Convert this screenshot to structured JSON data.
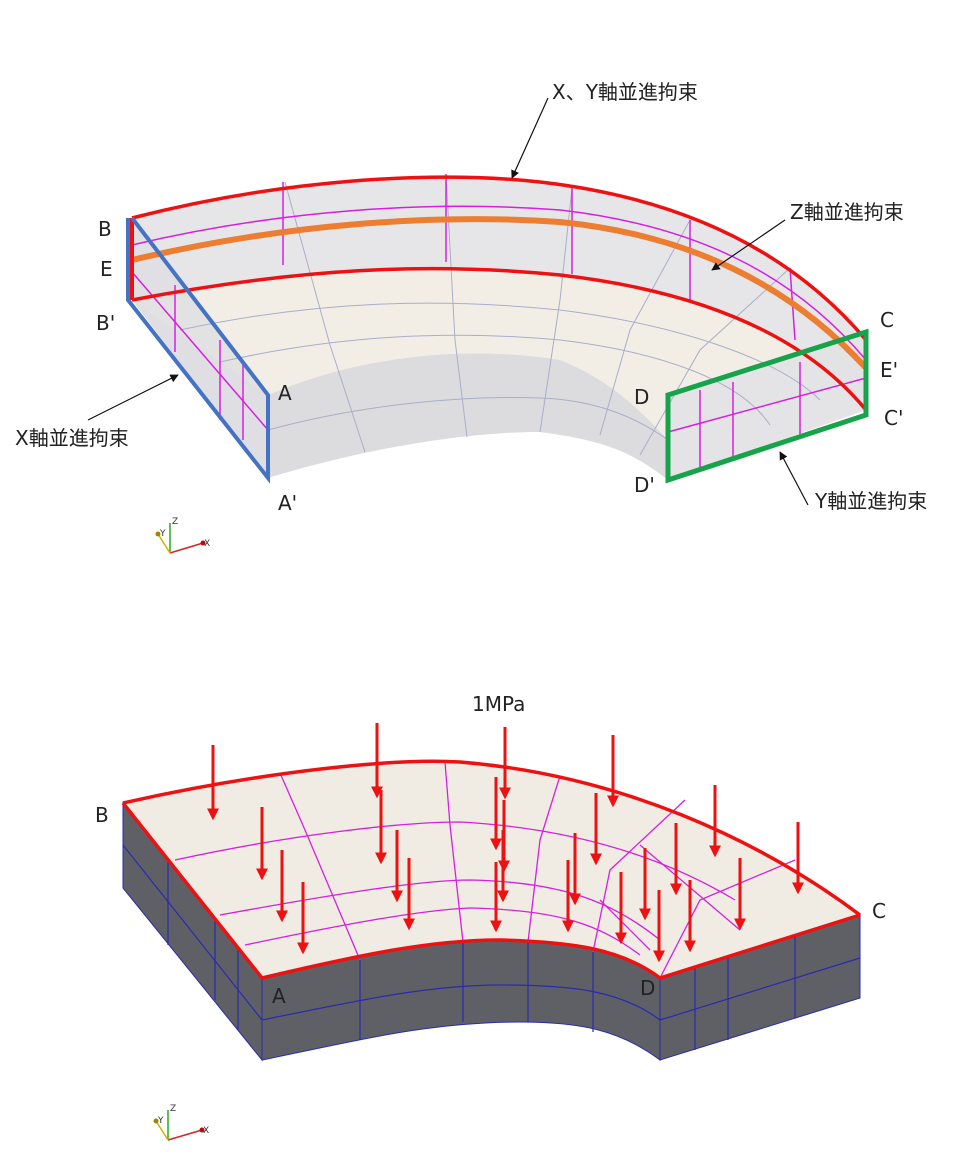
{
  "top_diagram": {
    "points": {
      "b": "B",
      "e": "E",
      "b_prime": "B'",
      "a": "A",
      "a_prime": "A'",
      "c": "C",
      "e_prime": "E'",
      "c_prime": "C'",
      "d": "D",
      "d_prime": "D'"
    },
    "callouts": {
      "xy_constraint": "X、Y軸並進拘束",
      "z_constraint": "Z軸並進拘束",
      "x_constraint": "X軸並進拘束",
      "y_constraint": "Y軸並進拘束"
    },
    "axis_triad": {
      "x": "X",
      "y": "Y",
      "z": "Z"
    }
  },
  "bottom_diagram": {
    "load_label": "1MPa",
    "points": {
      "b": "B",
      "c": "C",
      "a": "A",
      "d": "D"
    },
    "axis_triad": {
      "x": "X",
      "y": "Y",
      "z": "Z"
    }
  },
  "colors": {
    "red": "#ee1111",
    "blue": "#4472c4",
    "green": "#16a34a",
    "orange": "#ed7d31",
    "magenta": "#d81ee0",
    "surface": "#f2eee6",
    "side_top": "#e4e4e6",
    "solid_side": "#5f6066",
    "mesh_blue": "#2a2ab0"
  }
}
